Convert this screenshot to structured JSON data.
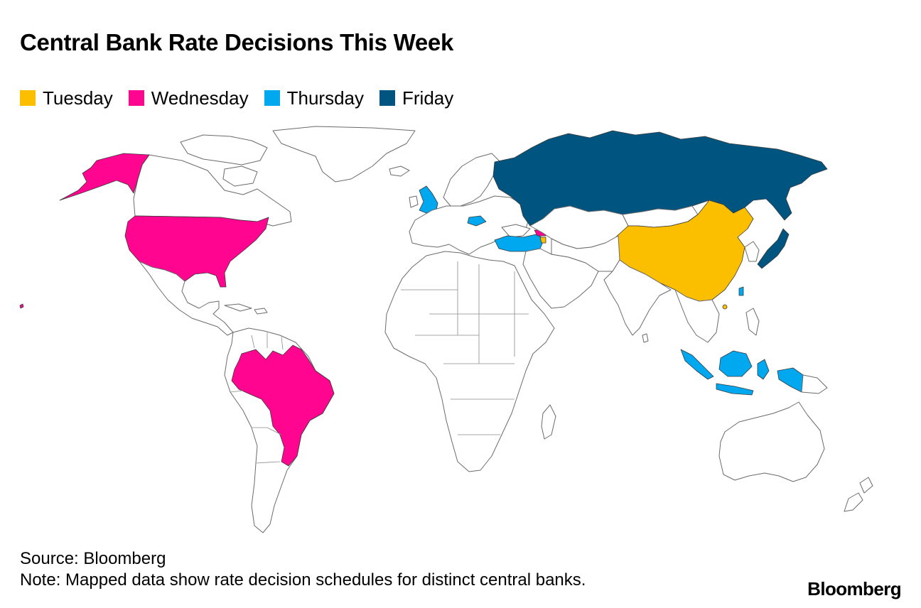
{
  "title": "Central Bank Rate Decisions This Week",
  "legend": [
    {
      "label": "Tuesday",
      "color": "#FCBF00"
    },
    {
      "label": "Wednesday",
      "color": "#FF0590"
    },
    {
      "label": "Thursday",
      "color": "#00A8F0"
    },
    {
      "label": "Friday",
      "color": "#005580"
    }
  ],
  "footer": {
    "source": "Source: Bloomberg",
    "note": "Note: Mapped data show rate decision schedules for distinct central banks."
  },
  "brand": "Bloomberg"
}
